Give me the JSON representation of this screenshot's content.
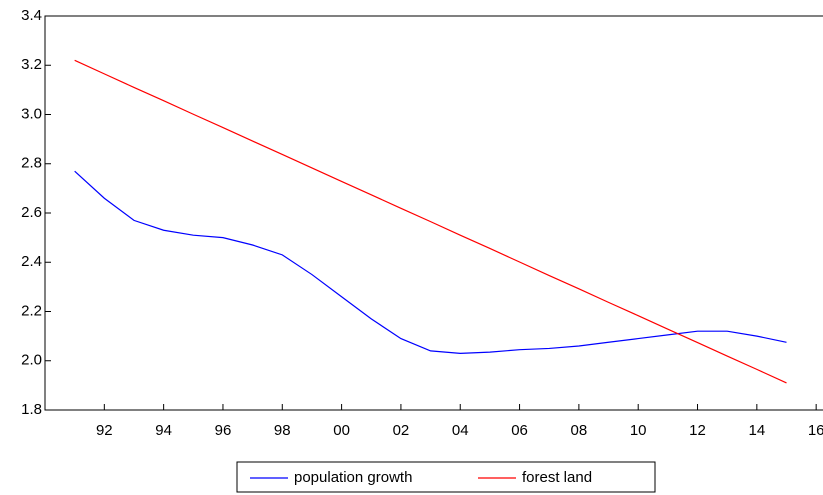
{
  "chart_data": {
    "type": "line",
    "x": [
      1991,
      1992,
      1993,
      1994,
      1995,
      1996,
      1997,
      1998,
      1999,
      2000,
      2001,
      2002,
      2003,
      2004,
      2005,
      2006,
      2007,
      2008,
      2009,
      2010,
      2011,
      2012,
      2013,
      2014,
      2015
    ],
    "series": [
      {
        "name": "population growth",
        "color": "#0000ff",
        "values": [
          2.77,
          2.66,
          2.57,
          2.53,
          2.51,
          2.5,
          2.47,
          2.43,
          2.35,
          2.26,
          2.17,
          2.09,
          2.04,
          2.03,
          2.035,
          2.045,
          2.05,
          2.06,
          2.075,
          2.09,
          2.105,
          2.12,
          2.12,
          2.1,
          2.075
        ]
      },
      {
        "name": "forest land",
        "color": "#ff0000",
        "values": [
          3.22,
          3.165,
          3.11,
          3.056,
          3.001,
          2.947,
          2.892,
          2.838,
          2.783,
          2.728,
          2.674,
          2.619,
          2.565,
          2.51,
          2.456,
          2.401,
          2.346,
          2.292,
          2.237,
          2.183,
          2.128,
          2.074,
          2.019,
          1.965,
          1.91
        ]
      }
    ],
    "xlim": [
      1990,
      2016.3
    ],
    "xticks": [
      {
        "value": 1992,
        "label": "92"
      },
      {
        "value": 1994,
        "label": "94"
      },
      {
        "value": 1996,
        "label": "96"
      },
      {
        "value": 1998,
        "label": "98"
      },
      {
        "value": 2000,
        "label": "00"
      },
      {
        "value": 2002,
        "label": "02"
      },
      {
        "value": 2004,
        "label": "04"
      },
      {
        "value": 2006,
        "label": "06"
      },
      {
        "value": 2008,
        "label": "08"
      },
      {
        "value": 2010,
        "label": "10"
      },
      {
        "value": 2012,
        "label": "12"
      },
      {
        "value": 2014,
        "label": "14"
      },
      {
        "value": 2016,
        "label": "16"
      }
    ],
    "ylim": [
      1.8,
      3.4
    ],
    "yticks": [
      1.8,
      {
        "value": 2,
        "label": "2.0"
      },
      2.2,
      2.4,
      2.6,
      2.8,
      {
        "value": 3,
        "label": "3.0"
      },
      3.2,
      3.4
    ],
    "legend": "bottom"
  }
}
